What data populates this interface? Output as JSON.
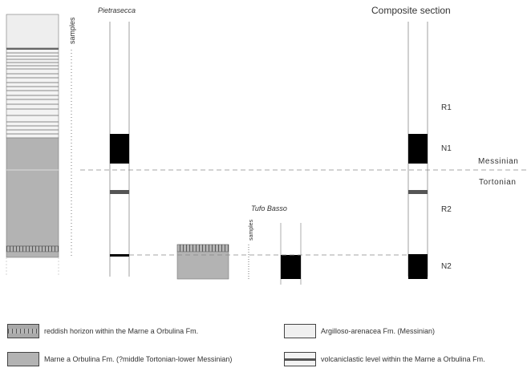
{
  "figure": {
    "samples_label": "samples",
    "pietrasecca_title": "Pietrasecca",
    "tufo_basso_title": "Tufo Basso",
    "tufo_samples_label": "samples",
    "composite_title": "Composite section",
    "stage_messinian": "Messinian",
    "stage_tortonian": "Tortonian",
    "zone_r1": "R1",
    "zone_n1": "N1",
    "zone_r2": "R2",
    "zone_n2": "N2"
  },
  "legend": {
    "reddish": "reddish horizon within the Marne a Orbulina Fm.",
    "marne": "Marne a Orbulina Fm. (?middle Tortonian-lower Messinian)",
    "argilloso": "Argilloso-arenacea Fm. (Messinian)",
    "volcanic": "volcaniclastic level within the Marne a Orbulina Fm."
  },
  "colors": {
    "normal_polarity": "#000000",
    "marne": "#b3b3b3",
    "argilloso": "#eeeeee",
    "volcanic": "#555555",
    "line": "#555555"
  }
}
